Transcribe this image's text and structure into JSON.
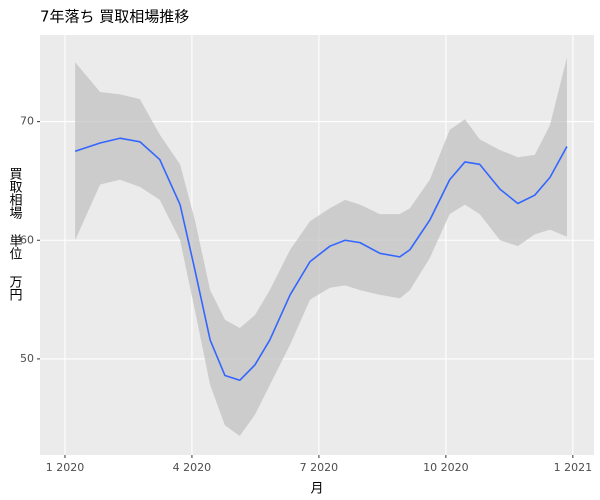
{
  "chart_data": {
    "type": "line",
    "title": "7年落ち 買取相場推移",
    "x_label": "月",
    "y_label": "買取相場 単位 万円",
    "x": [
      1.24,
      1.83,
      2.3,
      2.77,
      3.24,
      3.72,
      4.07,
      4.43,
      4.78,
      5.13,
      5.49,
      5.84,
      6.32,
      6.79,
      7.26,
      7.62,
      7.97,
      8.44,
      8.91,
      9.15,
      9.62,
      10.09,
      10.45,
      10.8,
      11.28,
      11.7,
      12.1,
      12.46,
      12.86
    ],
    "series": [
      {
        "color": "#3366ff",
        "values": [
          67.5,
          68.2,
          68.6,
          68.3,
          66.8,
          63.0,
          57.5,
          51.6,
          48.6,
          48.2,
          49.5,
          51.6,
          55.4,
          58.2,
          59.5,
          60.0,
          59.8,
          58.9,
          58.6,
          59.2,
          61.7,
          65.1,
          66.6,
          66.4,
          64.3,
          63.1,
          63.8,
          65.3,
          67.9
        ],
        "upper": [
          75.0,
          72.5,
          72.3,
          71.9,
          68.9,
          66.4,
          61.7,
          55.8,
          53.3,
          52.6,
          53.7,
          55.8,
          59.2,
          61.6,
          62.7,
          63.4,
          63.0,
          62.2,
          62.2,
          62.7,
          65.1,
          69.3,
          70.2,
          68.5,
          67.6,
          67.0,
          67.2,
          69.7,
          75.4
        ],
        "lower": [
          60.0,
          64.7,
          65.1,
          64.5,
          63.4,
          60.0,
          54.1,
          47.8,
          44.4,
          43.5,
          45.3,
          47.8,
          51.2,
          55.0,
          56.0,
          56.2,
          55.8,
          55.4,
          55.1,
          55.8,
          58.5,
          62.2,
          63.0,
          62.2,
          60.0,
          59.5,
          60.5,
          60.9,
          60.3
        ],
        "band_color": "#bfbfbf"
      }
    ],
    "xlim": [
      0.41,
      13.5
    ],
    "ylim": [
      41.9,
      77.3
    ],
    "xticks": [
      {
        "value": 1,
        "label": "1 2020"
      },
      {
        "value": 4,
        "label": "4 2020"
      },
      {
        "value": 7,
        "label": "7 2020"
      },
      {
        "value": 10,
        "label": "10 2020"
      },
      {
        "value": 13,
        "label": "1 2021"
      }
    ],
    "yticks": [
      50,
      60,
      70
    ],
    "grid": true,
    "panel_color": "#ebebeb"
  }
}
